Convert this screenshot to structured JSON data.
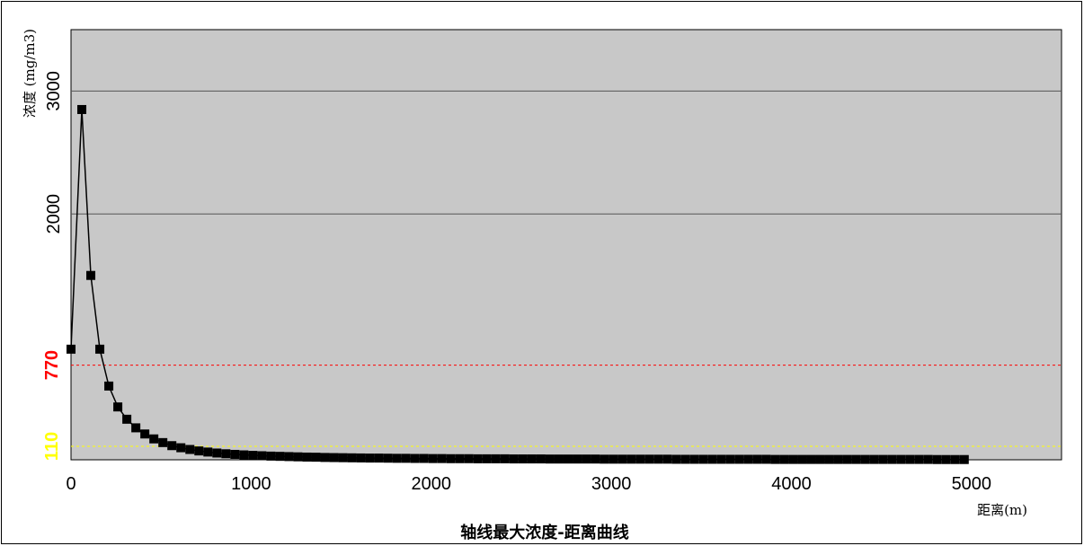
{
  "chart_data": {
    "type": "line",
    "title": "轴线最大浓度-距离曲线",
    "xlabel": "距离(m)",
    "ylabel": "浓度 (mg/m3)",
    "xlim": [
      0,
      5500
    ],
    "ylim": [
      0,
      3500
    ],
    "xticks": [
      "0",
      "1000",
      "2000",
      "3000",
      "4000",
      "5000"
    ],
    "yticks": [
      "2000",
      "3000"
    ],
    "grid": "horizontal",
    "plot_background": "#c8c8c8",
    "series": [
      {
        "color": "#000000",
        "marker": "square",
        "x": [
          0,
          60,
          110,
          160,
          210,
          260,
          310,
          360,
          410,
          460,
          510,
          560,
          610,
          660,
          710,
          760,
          810,
          860,
          910,
          960,
          1010,
          1060,
          1110,
          1160,
          1210,
          1260,
          1310,
          1360,
          1410,
          1460,
          1510,
          1560,
          1610,
          1660,
          1710,
          1760,
          1810,
          1860,
          1910,
          1960,
          2010,
          2060,
          2110,
          2160,
          2210,
          2260,
          2310,
          2360,
          2410,
          2460,
          2510,
          2560,
          2610,
          2660,
          2710,
          2760,
          2810,
          2860,
          2910,
          2960,
          3010,
          3060,
          3110,
          3160,
          3210,
          3260,
          3310,
          3360,
          3410,
          3460,
          3510,
          3560,
          3610,
          3660,
          3710,
          3760,
          3810,
          3860,
          3910,
          3960,
          4010,
          4060,
          4110,
          4160,
          4210,
          4260,
          4310,
          4360,
          4410,
          4460,
          4510,
          4560,
          4610,
          4660,
          4710,
          4760,
          4810,
          4860,
          4910,
          4960
        ],
        "y": [
          900,
          2850,
          1500,
          900,
          600,
          430,
          330,
          260,
          210,
          170,
          140,
          115,
          98,
          84,
          72,
          63,
          55,
          49,
          44,
          40,
          36,
          33,
          30,
          28,
          26,
          24,
          22,
          21,
          19,
          18,
          17,
          16,
          15,
          14,
          14,
          13,
          12,
          12,
          11,
          11,
          10,
          10,
          9,
          9,
          9,
          8,
          8,
          8,
          8,
          7,
          7,
          7,
          7,
          6,
          6,
          6,
          6,
          6,
          6,
          5,
          5,
          5,
          5,
          5,
          5,
          5,
          5,
          4,
          4,
          4,
          4,
          4,
          4,
          4,
          4,
          4,
          4,
          4,
          3,
          3,
          3,
          3,
          3,
          3,
          3,
          3,
          3,
          3,
          3,
          3,
          3,
          3,
          3,
          3,
          3,
          3,
          2,
          2,
          2,
          2
        ]
      }
    ],
    "reference_lines": [
      {
        "value": 770,
        "label": "770",
        "color": "#ff0000",
        "style": "dashed"
      },
      {
        "value": 110,
        "label": "110",
        "color": "#ffff00",
        "style": "dashed"
      }
    ]
  }
}
